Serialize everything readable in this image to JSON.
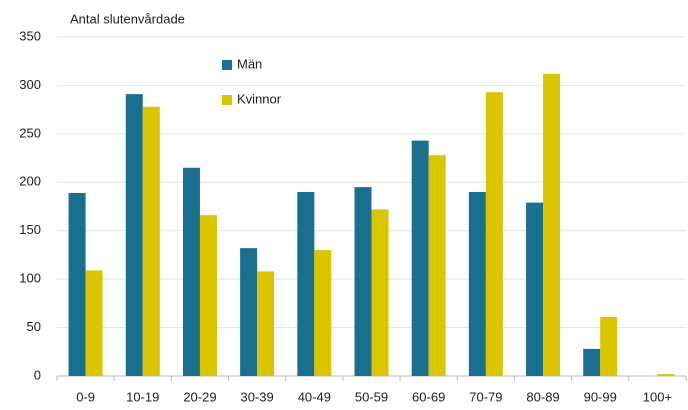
{
  "chart_data": {
    "type": "bar",
    "title": "Antal slutenvårdade",
    "categories": [
      "0-9",
      "10-19",
      "20-29",
      "30-39",
      "40-49",
      "50-59",
      "60-69",
      "70-79",
      "80-89",
      "90-99",
      "100+"
    ],
    "series": [
      {
        "name": "Män",
        "color": "#1a6f8f",
        "values": [
          189,
          291,
          215,
          132,
          190,
          195,
          243,
          190,
          179,
          28,
          0
        ]
      },
      {
        "name": "Kvinnor",
        "color": "#d9c600",
        "values": [
          109,
          278,
          166,
          108,
          130,
          172,
          228,
          293,
          312,
          61,
          2
        ]
      }
    ],
    "ylim": [
      0,
      350
    ],
    "yticks": [
      0,
      50,
      100,
      150,
      200,
      250,
      300,
      350
    ],
    "grid": true
  }
}
